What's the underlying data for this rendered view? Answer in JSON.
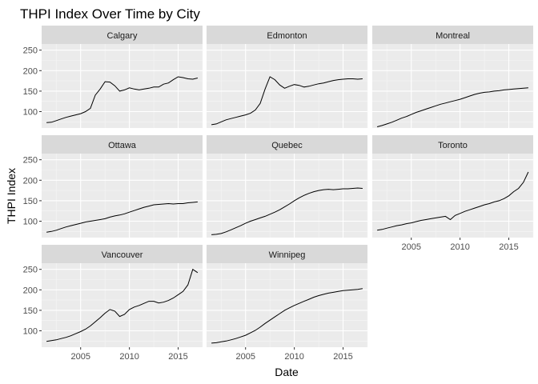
{
  "chart_data": {
    "type": "line",
    "title": "THPI Index Over Time by City",
    "xlabel": "Date",
    "ylabel": "THPI Index",
    "xlim": [
      2001,
      2017.5
    ],
    "ylim": [
      60,
      265
    ],
    "x_ticks": [
      2005,
      2010,
      2015
    ],
    "y_ticks": [
      100,
      150,
      200,
      250
    ],
    "grid": true,
    "facets": [
      "Calgary",
      "Edmonton",
      "Montreal",
      "Ottawa",
      "Quebec",
      "Toronto",
      "Vancouver",
      "Winnipeg"
    ],
    "x": [
      2001.5,
      2002.0,
      2002.5,
      2003.0,
      2003.5,
      2004.0,
      2004.5,
      2005.0,
      2005.5,
      2006.0,
      2006.5,
      2007.0,
      2007.5,
      2008.0,
      2008.5,
      2009.0,
      2009.5,
      2010.0,
      2010.5,
      2011.0,
      2011.5,
      2012.0,
      2012.5,
      2013.0,
      2013.5,
      2014.0,
      2014.5,
      2015.0,
      2015.5,
      2016.0,
      2016.5,
      2017.0
    ],
    "series": [
      {
        "name": "Calgary",
        "values": [
          73,
          74,
          78,
          82,
          86,
          89,
          92,
          95,
          100,
          108,
          140,
          155,
          173,
          172,
          163,
          150,
          153,
          158,
          155,
          153,
          155,
          157,
          160,
          160,
          167,
          170,
          178,
          185,
          183,
          180,
          179,
          182
        ]
      },
      {
        "name": "Edmonton",
        "values": [
          68,
          70,
          75,
          80,
          83,
          86,
          89,
          92,
          96,
          104,
          120,
          155,
          185,
          178,
          165,
          157,
          162,
          166,
          164,
          160,
          162,
          165,
          168,
          170,
          173,
          176,
          178,
          179,
          180,
          180,
          179,
          180
        ]
      },
      {
        "name": "Montreal",
        "values": [
          63,
          66,
          70,
          74,
          79,
          84,
          88,
          93,
          98,
          102,
          106,
          110,
          114,
          118,
          121,
          124,
          127,
          130,
          134,
          138,
          142,
          145,
          147,
          148,
          150,
          151,
          153,
          154,
          155,
          156,
          157,
          158
        ]
      },
      {
        "name": "Ottawa",
        "values": [
          73,
          75,
          78,
          82,
          86,
          89,
          92,
          95,
          98,
          100,
          102,
          104,
          106,
          110,
          113,
          115,
          118,
          122,
          126,
          130,
          134,
          137,
          140,
          141,
          142,
          143,
          142,
          143,
          143,
          145,
          146,
          147
        ]
      },
      {
        "name": "Quebec",
        "values": [
          67,
          68,
          70,
          74,
          79,
          84,
          89,
          95,
          100,
          104,
          108,
          112,
          117,
          122,
          128,
          135,
          142,
          150,
          157,
          163,
          168,
          172,
          175,
          177,
          178,
          177,
          178,
          179,
          179,
          180,
          181,
          180
        ]
      },
      {
        "name": "Toronto",
        "values": [
          78,
          80,
          83,
          86,
          89,
          91,
          94,
          96,
          99,
          102,
          104,
          106,
          108,
          110,
          112,
          104,
          114,
          119,
          124,
          128,
          132,
          136,
          140,
          143,
          147,
          150,
          155,
          162,
          172,
          180,
          195,
          220
        ]
      },
      {
        "name": "Vancouver",
        "values": [
          74,
          76,
          78,
          81,
          84,
          88,
          93,
          98,
          104,
          112,
          122,
          132,
          143,
          152,
          148,
          135,
          140,
          152,
          158,
          162,
          167,
          172,
          172,
          168,
          170,
          174,
          180,
          188,
          196,
          212,
          250,
          242
        ]
      },
      {
        "name": "Winnipeg",
        "values": [
          70,
          71,
          73,
          75,
          78,
          81,
          85,
          89,
          95,
          101,
          109,
          118,
          126,
          134,
          142,
          150,
          156,
          162,
          167,
          172,
          177,
          182,
          186,
          189,
          192,
          194,
          196,
          198,
          199,
          200,
          201,
          203
        ]
      }
    ]
  }
}
